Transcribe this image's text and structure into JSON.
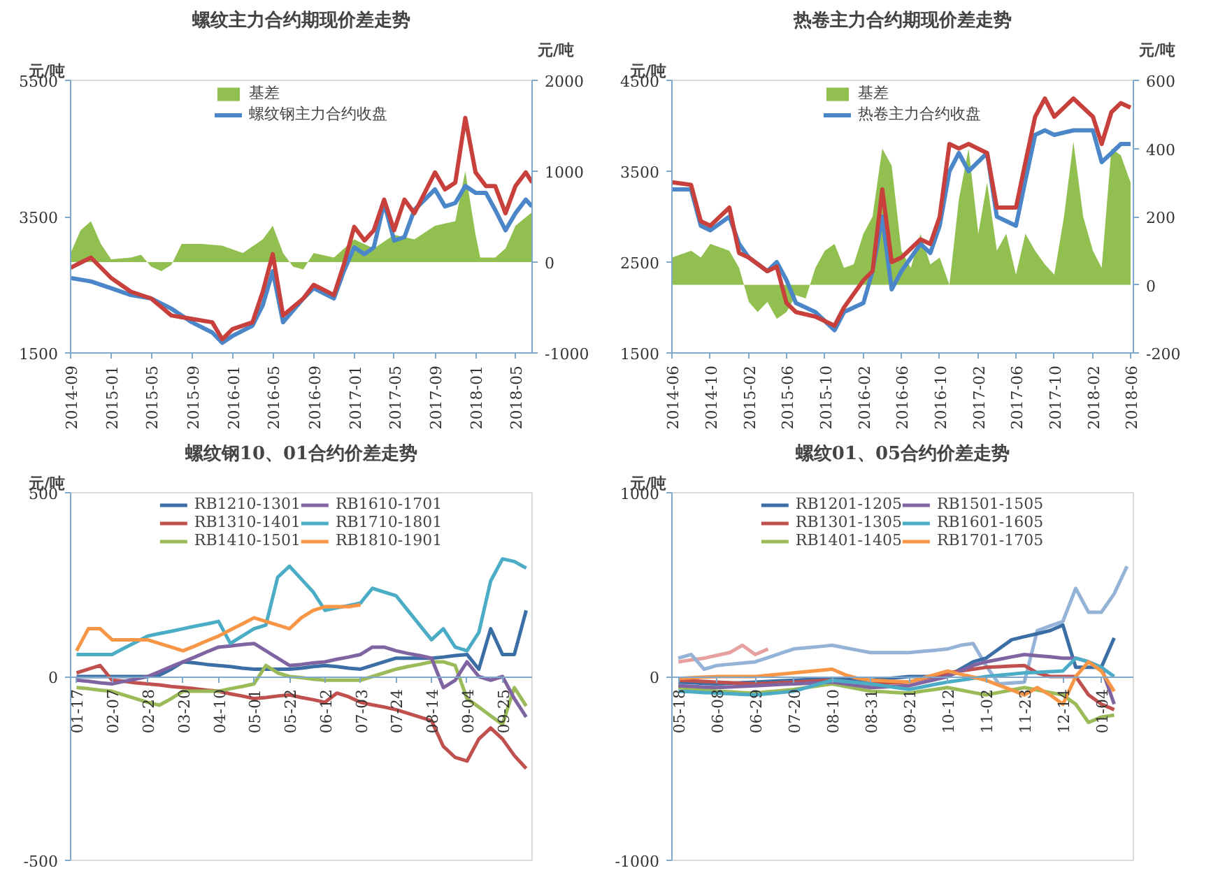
{
  "chart_data": [
    {
      "type": "line",
      "title": "螺纹主力合约期现价差走势",
      "ylabel": "元/吨",
      "y2label": "元/吨",
      "xlim": [
        "2014-09",
        "2018-06-20"
      ],
      "xticks": [
        "2014-09",
        "2015-01",
        "2015-05",
        "2015-09",
        "2016-01",
        "2016-05",
        "2016-09",
        "2017-01",
        "2017-05",
        "2017-09",
        "2018-01",
        "2018-05"
      ],
      "ylim": [
        1500,
        5500
      ],
      "yticks": [
        1500,
        3500,
        5500
      ],
      "y2lim": [
        -1000,
        2000
      ],
      "y2ticks": [
        -1000,
        0,
        1000,
        2000
      ],
      "legend": "top",
      "series": [
        {
          "name": "基差",
          "type": "area",
          "axis": "y2",
          "color": "#92c050",
          "x": [
            "2014-09",
            "2014-10",
            "2014-11",
            "2014-12",
            "2015-01",
            "2015-03",
            "2015-04",
            "2015-05",
            "2015-06",
            "2015-07",
            "2015-08",
            "2015-10",
            "2015-12",
            "2016-02",
            "2016-04",
            "2016-05",
            "2016-06",
            "2016-07",
            "2016-08",
            "2016-09",
            "2016-11",
            "2017-01",
            "2017-03",
            "2017-05",
            "2017-07",
            "2017-09",
            "2017-11",
            "2017-12",
            "2018-01",
            "2018-01-15",
            "2018-03",
            "2018-04",
            "2018-05",
            "2018-06-20"
          ],
          "values": [
            100,
            350,
            450,
            200,
            30,
            50,
            80,
            -50,
            -100,
            -30,
            200,
            200,
            180,
            100,
            250,
            400,
            100,
            -50,
            -80,
            100,
            50,
            250,
            150,
            300,
            250,
            400,
            450,
            1000,
            300,
            50,
            50,
            150,
            400,
            550
          ]
        },
        {
          "name": "螺纹钢主力合约收盘",
          "color": "#4a86c8",
          "x": [
            "2014-09",
            "2014-11",
            "2015-01",
            "2015-03",
            "2015-05",
            "2015-07",
            "2015-09",
            "2015-11",
            "2015-12",
            "2016-01",
            "2016-03",
            "2016-04",
            "2016-05",
            "2016-06",
            "2016-08",
            "2016-09",
            "2016-11",
            "2016-12",
            "2017-01",
            "2017-02",
            "2017-03",
            "2017-04",
            "2017-05",
            "2017-06",
            "2017-07",
            "2017-09",
            "2017-10",
            "2017-11",
            "2017-12",
            "2018-01",
            "2018-02",
            "2018-03",
            "2018-04",
            "2018-05",
            "2018-06",
            "2018-06-20"
          ],
          "values": [
            2600,
            2550,
            2450,
            2350,
            2300,
            2150,
            1950,
            1800,
            1650,
            1750,
            1900,
            2200,
            2700,
            1950,
            2300,
            2450,
            2300,
            2700,
            3050,
            2950,
            3050,
            3700,
            3150,
            3200,
            3600,
            3900,
            3650,
            3700,
            3950,
            3850,
            3850,
            3600,
            3300,
            3550,
            3750,
            3650
          ]
        },
        {
          "color": "#c8403c",
          "x": [
            "2014-09",
            "2014-11",
            "2015-01",
            "2015-03",
            "2015-05",
            "2015-07",
            "2015-09",
            "2015-11",
            "2015-12",
            "2016-01",
            "2016-03",
            "2016-04",
            "2016-05",
            "2016-06",
            "2016-08",
            "2016-09",
            "2016-11",
            "2016-12",
            "2017-01",
            "2017-02",
            "2017-03",
            "2017-04",
            "2017-05",
            "2017-06",
            "2017-07",
            "2017-09",
            "2017-10",
            "2017-11",
            "2017-12",
            "2018-01",
            "2018-02",
            "2018-03",
            "2018-04",
            "2018-05",
            "2018-06",
            "2018-06-20"
          ],
          "values": [
            2750,
            2900,
            2600,
            2400,
            2300,
            2050,
            2000,
            1950,
            1700,
            1850,
            1950,
            2400,
            2950,
            2050,
            2300,
            2500,
            2350,
            2800,
            3350,
            3150,
            3300,
            3750,
            3300,
            3750,
            3550,
            4150,
            3900,
            4000,
            4950,
            4150,
            3950,
            3950,
            3550,
            3950,
            4150,
            4000
          ]
        }
      ]
    },
    {
      "type": "line",
      "title": "热卷主力合约期现价差走势",
      "ylabel": "元/吨",
      "y2label": "元/吨",
      "xlim": [
        "2014-06",
        "2018-06-10"
      ],
      "xticks": [
        "2014-06",
        "2014-10",
        "2015-02",
        "2015-06",
        "2015-10",
        "2016-02",
        "2016-06",
        "2016-10",
        "2017-02",
        "2017-06",
        "2017-10",
        "2018-02",
        "2018-06"
      ],
      "ylim": [
        1500,
        4500
      ],
      "yticks": [
        1500,
        2500,
        3500,
        4500
      ],
      "y2lim": [
        -200,
        600
      ],
      "y2ticks": [
        -200,
        0,
        200,
        400,
        600
      ],
      "legend": "top",
      "series": [
        {
          "name": "基差",
          "type": "area",
          "axis": "y2",
          "color": "#92c050",
          "x": [
            "2014-06",
            "2014-08",
            "2014-09",
            "2014-10",
            "2014-12",
            "2015-01",
            "2015-02",
            "2015-03",
            "2015-04",
            "2015-05",
            "2015-06",
            "2015-07",
            "2015-08",
            "2015-09",
            "2015-10",
            "2015-11",
            "2015-12",
            "2016-01",
            "2016-02",
            "2016-03",
            "2016-04",
            "2016-05",
            "2016-06",
            "2016-07",
            "2016-08",
            "2016-09",
            "2016-10",
            "2016-11",
            "2016-12",
            "2017-01",
            "2017-02",
            "2017-03",
            "2017-04",
            "2017-05",
            "2017-06",
            "2017-07",
            "2017-08",
            "2017-09",
            "2017-10",
            "2017-11",
            "2017-12",
            "2018-01",
            "2018-02",
            "2018-03",
            "2018-04",
            "2018-05",
            "2018-06"
          ],
          "values": [
            80,
            100,
            80,
            120,
            100,
            50,
            -50,
            -80,
            -50,
            -100,
            -80,
            -30,
            -40,
            50,
            100,
            120,
            50,
            60,
            150,
            200,
            400,
            350,
            100,
            50,
            150,
            60,
            80,
            0,
            250,
            400,
            150,
            300,
            100,
            150,
            30,
            150,
            100,
            60,
            30,
            200,
            420,
            200,
            100,
            50,
            400,
            380,
            300
          ]
        },
        {
          "name": "热卷主力合约收盘",
          "color": "#4a86c8",
          "x": [
            "2014-06",
            "2014-08",
            "2014-09",
            "2014-10",
            "2014-12",
            "2015-01",
            "2015-02",
            "2015-04",
            "2015-05",
            "2015-06",
            "2015-07",
            "2015-09",
            "2015-11",
            "2015-12",
            "2016-02",
            "2016-03",
            "2016-04",
            "2016-05",
            "2016-06",
            "2016-08",
            "2016-09",
            "2016-10",
            "2016-11",
            "2016-12",
            "2017-01",
            "2017-03",
            "2017-04",
            "2017-06",
            "2017-07",
            "2017-08",
            "2017-09",
            "2017-10",
            "2017-12",
            "2018-02",
            "2018-03",
            "2018-04",
            "2018-05",
            "2018-06"
          ],
          "values": [
            3300,
            3300,
            2900,
            2850,
            3000,
            2700,
            2550,
            2400,
            2500,
            2300,
            2050,
            1950,
            1750,
            1950,
            2050,
            2400,
            3000,
            2200,
            2400,
            2700,
            2600,
            2900,
            3500,
            3700,
            3500,
            3700,
            3000,
            2900,
            3400,
            3900,
            3950,
            3900,
            3950,
            3950,
            3600,
            3700,
            3800,
            3800
          ]
        },
        {
          "color": "#c8403c",
          "x": [
            "2014-06",
            "2014-08",
            "2014-09",
            "2014-10",
            "2014-12",
            "2015-01",
            "2015-02",
            "2015-04",
            "2015-05",
            "2015-06",
            "2015-07",
            "2015-09",
            "2015-11",
            "2015-12",
            "2016-02",
            "2016-03",
            "2016-04",
            "2016-05",
            "2016-06",
            "2016-08",
            "2016-09",
            "2016-10",
            "2016-11",
            "2016-12",
            "2017-01",
            "2017-03",
            "2017-04",
            "2017-06",
            "2017-07",
            "2017-08",
            "2017-09",
            "2017-10",
            "2017-12",
            "2018-02",
            "2018-03",
            "2018-04",
            "2018-05",
            "2018-06"
          ],
          "values": [
            3380,
            3350,
            2950,
            2900,
            3100,
            2600,
            2550,
            2400,
            2450,
            2050,
            1950,
            1900,
            1800,
            2000,
            2300,
            2400,
            3300,
            2500,
            2550,
            2750,
            2700,
            3000,
            3800,
            3750,
            3800,
            3700,
            3100,
            3100,
            3600,
            4100,
            4300,
            4100,
            4300,
            4100,
            3800,
            4150,
            4250,
            4200
          ]
        }
      ]
    },
    {
      "type": "line",
      "title": "螺纹钢10、01合约价差走势",
      "ylabel": "元/吨",
      "ylim": [
        -500,
        500
      ],
      "yticks": [
        -500,
        0,
        500
      ],
      "legend": "top",
      "categories": [
        "01-17",
        null,
        null,
        "02-07",
        null,
        null,
        "02-28",
        null,
        null,
        "03-20",
        null,
        null,
        "04-10",
        null,
        null,
        "05-01",
        null,
        null,
        "05-22",
        null,
        null,
        "06-12",
        null,
        null,
        "07-03",
        null,
        null,
        "07-24",
        null,
        null,
        "08-14",
        null,
        null,
        "09-04",
        null,
        null,
        "09-25",
        null,
        null
      ],
      "series": [
        {
          "name": "RB1210-1301",
          "color": "#3a6ea5",
          "values": [
            0,
            0,
            0,
            0,
            0,
            0,
            0,
            4,
            20,
            40,
            37,
            33,
            30,
            27,
            23,
            20,
            20,
            20,
            20,
            23,
            27,
            30,
            27,
            23,
            20,
            30,
            40,
            50,
            50,
            50,
            50,
            53,
            57,
            60,
            20,
            130,
            60,
            60,
            180
          ]
        },
        {
          "name": "RB1310-1401",
          "color": "#c0504d",
          "values": [
            10,
            20,
            30,
            -10,
            -13,
            -17,
            -20,
            -23,
            -27,
            -30,
            -33,
            -37,
            -40,
            -47,
            -53,
            -60,
            -57,
            -53,
            -50,
            -57,
            -63,
            -70,
            -45,
            -55,
            -70,
            -77,
            -83,
            -90,
            -100,
            -110,
            -120,
            -190,
            -220,
            -230,
            -170,
            -140,
            -170,
            -215,
            -250
          ]
        },
        {
          "name": "RB1410-1501",
          "color": "#9bbb59",
          "values": [
            -30,
            -33,
            -37,
            -40,
            -50,
            -60,
            -70,
            -78,
            -60,
            -40,
            -40,
            -40,
            -40,
            -33,
            -27,
            -20,
            30,
            10,
            0,
            -3,
            -7,
            -10,
            -10,
            -10,
            -10,
            0,
            10,
            20,
            27,
            33,
            40,
            40,
            30,
            -60,
            -83,
            -107,
            -130,
            -30,
            -80
          ]
        },
        {
          "name": "RB1610-1701",
          "color": "#8064a2",
          "values": [
            -10,
            -13,
            -17,
            -20,
            -13,
            -7,
            0,
            13,
            27,
            40,
            53,
            67,
            80,
            83,
            87,
            90,
            70,
            50,
            30,
            33,
            37,
            40,
            47,
            53,
            60,
            80,
            80,
            70,
            63,
            57,
            50,
            -30,
            -10,
            40,
            0,
            -10,
            0,
            -60,
            -110
          ]
        },
        {
          "name": "RB1710-1801",
          "color": "#4bacc6",
          "values": [
            60,
            60,
            60,
            60,
            77,
            93,
            110,
            117,
            123,
            130,
            137,
            143,
            150,
            90,
            110,
            130,
            140,
            270,
            300,
            265,
            230,
            180,
            187,
            193,
            200,
            240,
            230,
            220,
            180,
            140,
            100,
            130,
            80,
            70,
            120,
            260,
            320,
            313,
            295
          ]
        },
        {
          "name": "RB1810-1901",
          "color": "#f79646",
          "values": [
            70,
            130,
            130,
            100,
            100,
            100,
            100,
            90,
            80,
            70,
            83,
            97,
            110,
            127,
            143,
            160,
            150,
            140,
            130,
            160,
            180,
            190,
            190,
            190,
            195,
            null,
            null,
            null,
            null,
            null,
            null,
            null,
            null,
            null,
            null,
            null,
            null,
            null,
            null
          ]
        }
      ]
    },
    {
      "type": "line",
      "title": "螺纹01、05合约价差走势",
      "ylabel": "元/吨",
      "ylim": [
        -1000,
        1000
      ],
      "yticks": [
        -1000,
        0,
        1000
      ],
      "legend": "top",
      "categories": [
        "05-18",
        null,
        null,
        "06-08",
        null,
        null,
        "06-29",
        null,
        null,
        "07-20",
        null,
        null,
        "08-10",
        null,
        null,
        "08-31",
        null,
        null,
        "09-21",
        null,
        null,
        "10-12",
        null,
        null,
        "11-02",
        null,
        null,
        "11-23",
        null,
        null,
        "12-14",
        null,
        null,
        "01-04",
        null,
        null
      ],
      "series": [
        {
          "color": "#e6a0a0",
          "values": [
            80,
            90,
            100,
            115,
            130,
            170,
            120,
            150,
            null,
            null,
            null,
            null,
            null,
            null,
            null,
            null,
            null,
            null,
            null,
            null,
            null,
            null,
            null,
            null,
            null,
            null,
            null,
            null,
            null,
            null,
            null,
            null,
            null,
            null,
            null,
            null
          ]
        },
        {
          "color": "#95b3d7",
          "values": [
            100,
            120,
            40,
            60,
            67,
            73,
            80,
            103,
            127,
            150,
            157,
            163,
            170,
            157,
            143,
            130,
            130,
            130,
            130,
            137,
            143,
            150,
            170,
            180,
            60,
            -40,
            -35,
            -30,
            250,
            275,
            300,
            480,
            350,
            350,
            450,
            600
          ]
        },
        {
          "name": "RB1201-1205",
          "color": "#3a6ea5",
          "values": [
            -30,
            -33,
            -37,
            -40,
            -37,
            -33,
            -30,
            -27,
            -23,
            -20,
            -17,
            -13,
            -10,
            -13,
            -17,
            -20,
            -13,
            -7,
            0,
            0,
            0,
            0,
            40,
            80,
            100,
            150,
            200,
            217,
            233,
            250,
            280,
            50,
            50,
            50,
            210,
            null
          ]
        },
        {
          "name": "RB1301-1305",
          "color": "#c0504d",
          "values": [
            -20,
            -23,
            -27,
            -30,
            -33,
            -37,
            -40,
            -37,
            -33,
            -30,
            -27,
            -23,
            -20,
            -27,
            -33,
            -40,
            -37,
            -33,
            -30,
            -13,
            3,
            20,
            30,
            40,
            50,
            53,
            57,
            60,
            20,
            0,
            0,
            0,
            -100,
            -150,
            -180,
            null
          ]
        },
        {
          "name": "RB1401-1405",
          "color": "#9bbb59",
          "values": [
            -60,
            -67,
            -73,
            -80,
            -83,
            -87,
            -90,
            -83,
            -77,
            -70,
            -60,
            -50,
            -40,
            -53,
            -67,
            -80,
            -83,
            -87,
            -90,
            -80,
            -70,
            -60,
            -73,
            -87,
            -100,
            -87,
            -73,
            -60,
            -73,
            -87,
            -100,
            -150,
            -250,
            -220,
            -210,
            null
          ]
        },
        {
          "name": "RB1501-1505",
          "color": "#8064a2",
          "values": [
            -50,
            -53,
            -57,
            -60,
            -57,
            -53,
            -50,
            -47,
            -43,
            -40,
            -37,
            -33,
            -30,
            -40,
            -50,
            -60,
            -57,
            -53,
            -50,
            -33,
            -17,
            0,
            30,
            60,
            80,
            93,
            107,
            120,
            113,
            107,
            100,
            100,
            80,
            50,
            -150,
            null
          ]
        },
        {
          "name": "RB1601-1605",
          "color": "#4bacc6",
          "values": [
            -80,
            -83,
            -87,
            -90,
            -93,
            -97,
            -100,
            -93,
            -87,
            -80,
            -60,
            -40,
            -20,
            -27,
            -33,
            -40,
            -50,
            -60,
            -70,
            -57,
            -43,
            -30,
            -20,
            -10,
            0,
            7,
            13,
            20,
            23,
            27,
            30,
            100,
            80,
            50,
            0,
            null
          ]
        },
        {
          "name": "RB1701-1705",
          "color": "#f79646",
          "values": [
            -10,
            -7,
            -3,
            0,
            0,
            0,
            0,
            7,
            13,
            20,
            27,
            33,
            40,
            10,
            -10,
            -20,
            -23,
            -27,
            -30,
            -10,
            10,
            30,
            13,
            -3,
            -20,
            -47,
            -73,
            -100,
            -60,
            -100,
            -150,
            0,
            80,
            30,
            -80,
            null
          ]
        }
      ]
    }
  ]
}
